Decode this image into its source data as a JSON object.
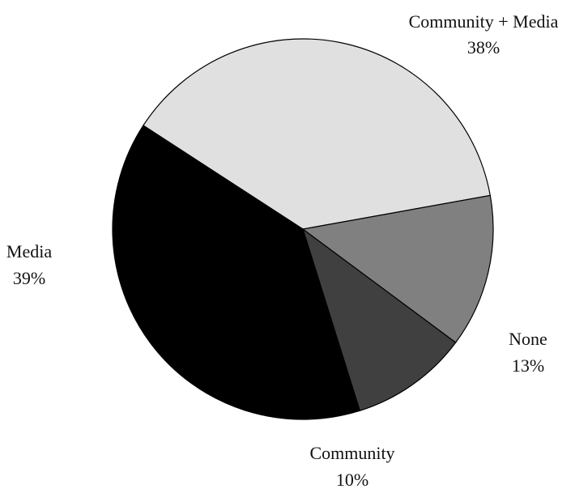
{
  "chart_data": {
    "type": "pie",
    "title": "",
    "slices": [
      {
        "label": "Community + Media",
        "value": 38,
        "display": "38%",
        "color": "#e0e0e0"
      },
      {
        "label": "None",
        "value": 13,
        "display": "13%",
        "color": "#808080"
      },
      {
        "label": "Community",
        "value": 10,
        "display": "10%",
        "color": "#404040"
      },
      {
        "label": "Media",
        "value": 39,
        "display": "39%",
        "color": "#000000"
      }
    ],
    "legend": "none",
    "outline_color": "#000000"
  }
}
